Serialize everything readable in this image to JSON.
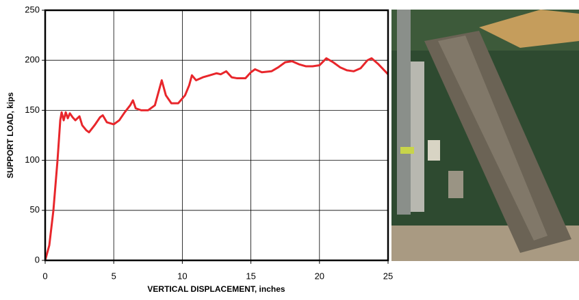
{
  "chart_data": {
    "type": "line",
    "x_label": "VERTICAL DISPLACEMENT, inches",
    "y_label": "SUPPORT LOAD, kips",
    "x": [
      0,
      0.3,
      0.6,
      0.9,
      1.1,
      1.2,
      1.35,
      1.5,
      1.65,
      1.8,
      2.0,
      2.2,
      2.5,
      2.7,
      3.0,
      3.2,
      3.6,
      4.0,
      4.2,
      4.5,
      5.0,
      5.4,
      5.8,
      6.2,
      6.4,
      6.6,
      7.0,
      7.5,
      8.0,
      8.3,
      8.5,
      8.8,
      9.2,
      9.7,
      10.2,
      10.5,
      10.7,
      11.0,
      11.5,
      12.0,
      12.5,
      12.8,
      13.2,
      13.6,
      14.0,
      14.6,
      15.0,
      15.3,
      15.8,
      16.5,
      17.0,
      17.5,
      18.0,
      18.5,
      19.0,
      19.5,
      20.0,
      20.5,
      21.0,
      21.5,
      22.0,
      22.5,
      23.0,
      23.5,
      23.8,
      24.3,
      25
    ],
    "series": [
      {
        "color": "#e8262b",
        "values": [
          0,
          15,
          50,
          100,
          140,
          148,
          140,
          148,
          142,
          147,
          143,
          140,
          144,
          135,
          130,
          128,
          135,
          143,
          145,
          138,
          136,
          140,
          148,
          155,
          160,
          152,
          150,
          150,
          155,
          170,
          180,
          165,
          157,
          157,
          165,
          175,
          185,
          180,
          183,
          185,
          187,
          186,
          189,
          183,
          182,
          182,
          188,
          191,
          188,
          189,
          193,
          198,
          199,
          196,
          194,
          194,
          195,
          202,
          198,
          193,
          190,
          189,
          192,
          200,
          202,
          196,
          186
        ]
      }
    ],
    "xlim": [
      0,
      25
    ],
    "xticks": [
      0,
      5,
      10,
      15,
      20,
      25
    ],
    "ylim": [
      0,
      250
    ],
    "yticks": [
      0,
      50,
      100,
      150,
      200,
      250
    ],
    "grid": true
  }
}
